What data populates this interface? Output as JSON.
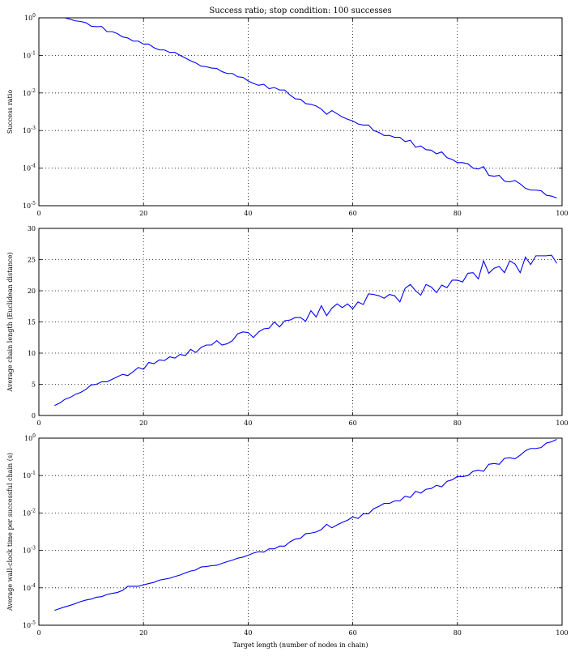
{
  "chart_data": [
    {
      "type": "line",
      "title": "Success ratio; stop condition: 100 successes",
      "xlabel": "",
      "ylabel": "Success ratio",
      "yscale": "log",
      "xlim": [
        0,
        100
      ],
      "ylim": [
        1e-05,
        1
      ],
      "grid": true,
      "xticks": [
        "0",
        "20",
        "40",
        "60",
        "80",
        "100"
      ],
      "yticks": [
        {
          "base": "10",
          "exp": "-5"
        },
        {
          "base": "10",
          "exp": "-4"
        },
        {
          "base": "10",
          "exp": "-3"
        },
        {
          "base": "10",
          "exp": "-2"
        },
        {
          "base": "10",
          "exp": "-1"
        },
        {
          "base": "10",
          "exp": "0"
        }
      ],
      "series": [
        {
          "color": "#0000ff",
          "x": [
            3,
            4,
            5,
            6,
            7,
            8,
            9,
            10,
            11,
            12,
            13,
            14,
            15,
            16,
            17,
            18,
            19,
            20,
            21,
            22,
            23,
            24,
            25,
            26,
            27,
            28,
            29,
            30,
            31,
            32,
            33,
            34,
            35,
            36,
            37,
            38,
            39,
            40,
            41,
            42,
            43,
            44,
            45,
            46,
            47,
            48,
            49,
            50,
            51,
            52,
            53,
            54,
            55,
            56,
            57,
            58,
            59,
            60,
            61,
            62,
            63,
            64,
            65,
            66,
            67,
            68,
            69,
            70,
            71,
            72,
            73,
            74,
            75,
            76,
            77,
            78,
            79,
            80,
            81,
            82,
            83,
            84,
            85,
            86,
            87,
            88,
            89,
            90,
            91,
            92,
            93,
            94,
            95,
            96,
            97,
            98,
            99
          ],
          "y": [
            1.0,
            1.0,
            1.0,
            0.91,
            0.83,
            0.8,
            0.74,
            0.6,
            0.58,
            0.59,
            0.43,
            0.43,
            0.38,
            0.31,
            0.29,
            0.24,
            0.24,
            0.2,
            0.2,
            0.16,
            0.14,
            0.14,
            0.12,
            0.12,
            0.1,
            0.085,
            0.072,
            0.063,
            0.052,
            0.05,
            0.046,
            0.045,
            0.037,
            0.033,
            0.033,
            0.027,
            0.026,
            0.021,
            0.018,
            0.016,
            0.017,
            0.013,
            0.014,
            0.012,
            0.012,
            0.0088,
            0.007,
            0.0068,
            0.0052,
            0.005,
            0.0045,
            0.0037,
            0.0027,
            0.0034,
            0.0028,
            0.0023,
            0.002,
            0.0018,
            0.0015,
            0.0014,
            0.0014,
            0.001,
            0.00089,
            0.00074,
            0.00074,
            0.00066,
            0.00066,
            0.00051,
            0.00055,
            0.00036,
            0.00039,
            0.00031,
            0.0003,
            0.00024,
            0.00027,
            0.00019,
            0.00017,
            0.00014,
            0.00014,
            0.00013,
            0.0001,
            9.5e-05,
            0.00011,
            6.4e-05,
            6.1e-05,
            6.4e-05,
            4.5e-05,
            4.3e-05,
            4.7e-05,
            3.8e-05,
            2.9e-05,
            2.6e-05,
            2.6e-05,
            2.5e-05,
            1.9e-05,
            1.8e-05,
            1.6e-05
          ]
        }
      ]
    },
    {
      "type": "line",
      "title": "",
      "xlabel": "",
      "ylabel": "Average chain length (Euclidean distance)",
      "yscale": "linear",
      "xlim": [
        0,
        100
      ],
      "ylim": [
        0,
        30
      ],
      "grid": true,
      "xticks": [
        "0",
        "20",
        "40",
        "60",
        "80",
        "100"
      ],
      "yticks": [
        "0",
        "5",
        "10",
        "15",
        "20",
        "25",
        "30"
      ],
      "series": [
        {
          "color": "#0000ff",
          "x": [
            3,
            4,
            5,
            6,
            7,
            8,
            9,
            10,
            11,
            12,
            13,
            14,
            15,
            16,
            17,
            18,
            19,
            20,
            21,
            22,
            23,
            24,
            25,
            26,
            27,
            28,
            29,
            30,
            31,
            32,
            33,
            34,
            35,
            36,
            37,
            38,
            39,
            40,
            41,
            42,
            43,
            44,
            45,
            46,
            47,
            48,
            49,
            50,
            51,
            52,
            53,
            54,
            55,
            56,
            57,
            58,
            59,
            60,
            61,
            62,
            63,
            64,
            65,
            66,
            67,
            68,
            69,
            70,
            71,
            72,
            73,
            74,
            75,
            76,
            77,
            78,
            79,
            80,
            81,
            82,
            83,
            84,
            85,
            86,
            87,
            88,
            89,
            90,
            91,
            92,
            93,
            94,
            95,
            96,
            97,
            98,
            99
          ],
          "y": [
            1.6,
            2.0,
            2.6,
            2.9,
            3.4,
            3.7,
            4.2,
            4.9,
            5.0,
            5.4,
            5.4,
            5.8,
            6.2,
            6.6,
            6.4,
            7.0,
            7.7,
            7.4,
            8.5,
            8.3,
            8.9,
            8.8,
            9.4,
            9.2,
            9.8,
            9.6,
            10.6,
            10.1,
            10.9,
            11.3,
            11.3,
            12.0,
            11.3,
            11.5,
            12.0,
            13.1,
            13.4,
            13.3,
            12.5,
            13.4,
            13.9,
            14.0,
            15.0,
            14.2,
            15.2,
            15.3,
            15.7,
            15.7,
            15.1,
            16.8,
            15.8,
            17.6,
            16.0,
            17.2,
            17.9,
            17.3,
            17.9,
            17.1,
            18.2,
            17.8,
            19.5,
            19.4,
            19.2,
            18.8,
            19.4,
            19.2,
            18.2,
            20.4,
            21.0,
            20.0,
            19.3,
            21.0,
            20.6,
            19.7,
            20.9,
            20.5,
            21.7,
            21.7,
            21.4,
            22.8,
            22.9,
            21.9,
            24.8,
            22.8,
            23.6,
            23.9,
            22.9,
            24.8,
            24.3,
            22.9,
            25.4,
            24.2,
            25.6,
            25.6,
            25.6,
            25.7,
            24.4
          ]
        }
      ]
    },
    {
      "type": "line",
      "title": "",
      "xlabel": "Target length (number of nodes in chain)",
      "ylabel": "Average wall-clock time per successful chain (s)",
      "yscale": "log",
      "xlim": [
        0,
        100
      ],
      "ylim": [
        1e-05,
        1
      ],
      "grid": true,
      "xticks": [
        "0",
        "20",
        "40",
        "60",
        "80",
        "100"
      ],
      "yticks": [
        {
          "base": "10",
          "exp": "-5"
        },
        {
          "base": "10",
          "exp": "-4"
        },
        {
          "base": "10",
          "exp": "-3"
        },
        {
          "base": "10",
          "exp": "-2"
        },
        {
          "base": "10",
          "exp": "-1"
        },
        {
          "base": "10",
          "exp": "0"
        }
      ],
      "series": [
        {
          "color": "#0000ff",
          "x": [
            3,
            4,
            5,
            6,
            7,
            8,
            9,
            10,
            11,
            12,
            13,
            14,
            15,
            16,
            17,
            18,
            19,
            20,
            21,
            22,
            23,
            24,
            25,
            26,
            27,
            28,
            29,
            30,
            31,
            32,
            33,
            34,
            35,
            36,
            37,
            38,
            39,
            40,
            41,
            42,
            43,
            44,
            45,
            46,
            47,
            48,
            49,
            50,
            51,
            52,
            53,
            54,
            55,
            56,
            57,
            58,
            59,
            60,
            61,
            62,
            63,
            64,
            65,
            66,
            67,
            68,
            69,
            70,
            71,
            72,
            73,
            74,
            75,
            76,
            77,
            78,
            79,
            80,
            81,
            82,
            83,
            84,
            85,
            86,
            87,
            88,
            89,
            90,
            91,
            92,
            93,
            94,
            95,
            96,
            97,
            98,
            99
          ],
          "y": [
            2.5e-05,
            2.8e-05,
            3.1e-05,
            3.4e-05,
            3.8e-05,
            4.3e-05,
            4.7e-05,
            5e-05,
            5.6e-05,
            5.8e-05,
            6.6e-05,
            7.1e-05,
            7.5e-05,
            8.5e-05,
            0.00011,
            0.00011,
            0.00011,
            0.00012,
            0.00013,
            0.00014,
            0.00016,
            0.00017,
            0.00018,
            0.0002,
            0.00022,
            0.00025,
            0.00028,
            0.0003,
            0.00036,
            0.00037,
            0.00039,
            0.0004,
            0.00045,
            0.0005,
            0.00055,
            0.00062,
            0.00066,
            0.00074,
            0.00085,
            0.00092,
            0.0009,
            0.0011,
            0.0011,
            0.0013,
            0.0013,
            0.0017,
            0.002,
            0.0021,
            0.0028,
            0.0029,
            0.0031,
            0.0036,
            0.005,
            0.004,
            0.0048,
            0.0056,
            0.0064,
            0.0079,
            0.0071,
            0.0095,
            0.0095,
            0.013,
            0.015,
            0.018,
            0.018,
            0.021,
            0.021,
            0.028,
            0.026,
            0.038,
            0.034,
            0.043,
            0.045,
            0.055,
            0.05,
            0.07,
            0.077,
            0.095,
            0.094,
            0.1,
            0.13,
            0.14,
            0.13,
            0.2,
            0.21,
            0.2,
            0.29,
            0.3,
            0.28,
            0.35,
            0.46,
            0.53,
            0.53,
            0.56,
            0.74,
            0.8,
            0.93
          ]
        }
      ]
    }
  ]
}
